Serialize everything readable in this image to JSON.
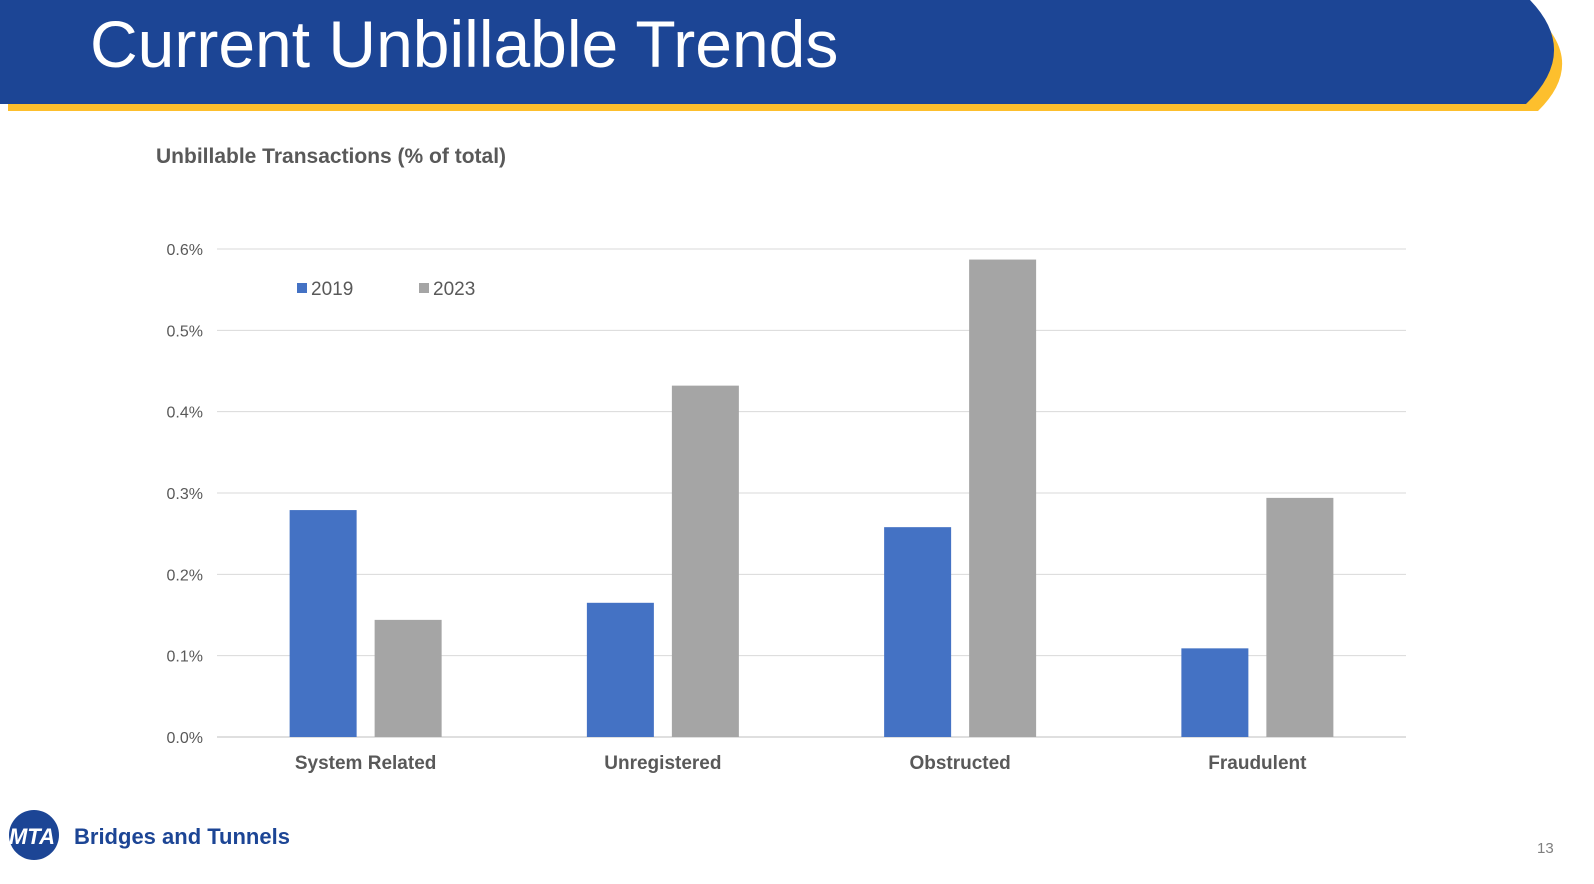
{
  "header": {
    "title": "Current Unbillable Trends"
  },
  "footer": {
    "logo_text": "MTA",
    "org": "Bridges and Tunnels",
    "page_number": "13"
  },
  "colors": {
    "brand_blue": "#1c4595",
    "accent_yellow": "#fdbf2d",
    "series_2019": "#4472c4",
    "series_2023": "#a5a5a5"
  },
  "chart_data": {
    "type": "bar",
    "title": "Unbillable Transactions (% of total)",
    "xlabel": "",
    "ylabel": "",
    "categories": [
      "System Related",
      "Unregistered",
      "Obstructed",
      "Fraudulent"
    ],
    "series": [
      {
        "name": "2019",
        "values": [
          0.279,
          0.165,
          0.258,
          0.109
        ]
      },
      {
        "name": "2023",
        "values": [
          0.144,
          0.432,
          0.587,
          0.294
        ]
      }
    ],
    "ylim": [
      0,
      0.6
    ],
    "yticks": [
      "0.0%",
      "0.1%",
      "0.2%",
      "0.3%",
      "0.4%",
      "0.5%",
      "0.6%"
    ],
    "grid": true,
    "legend_position": "top-left"
  }
}
